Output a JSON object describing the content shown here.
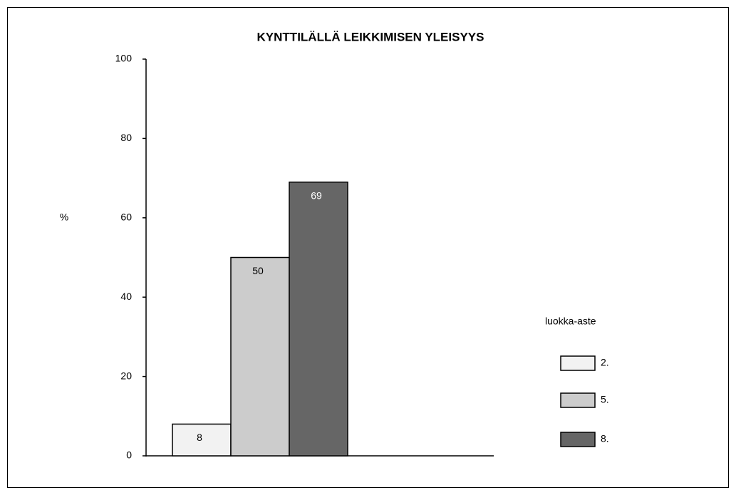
{
  "chart_data": {
    "type": "bar",
    "title": "KYNTTILÄLLÄ LEIKKIMISEN YLEISYYS",
    "ylabel": "%",
    "legend_title": "luokka-aste",
    "categories": [
      null
    ],
    "series": [
      {
        "name": "2.",
        "color": "#f2f2f2",
        "values": [
          8
        ]
      },
      {
        "name": "5.",
        "color": "#cccccc",
        "values": [
          50
        ]
      },
      {
        "name": "8.",
        "color": "#666666",
        "values": [
          69
        ]
      }
    ],
    "ylim": [
      0,
      100
    ],
    "yticks": [
      0,
      20,
      40,
      60,
      80,
      100
    ],
    "grid": false,
    "legend": "right"
  }
}
